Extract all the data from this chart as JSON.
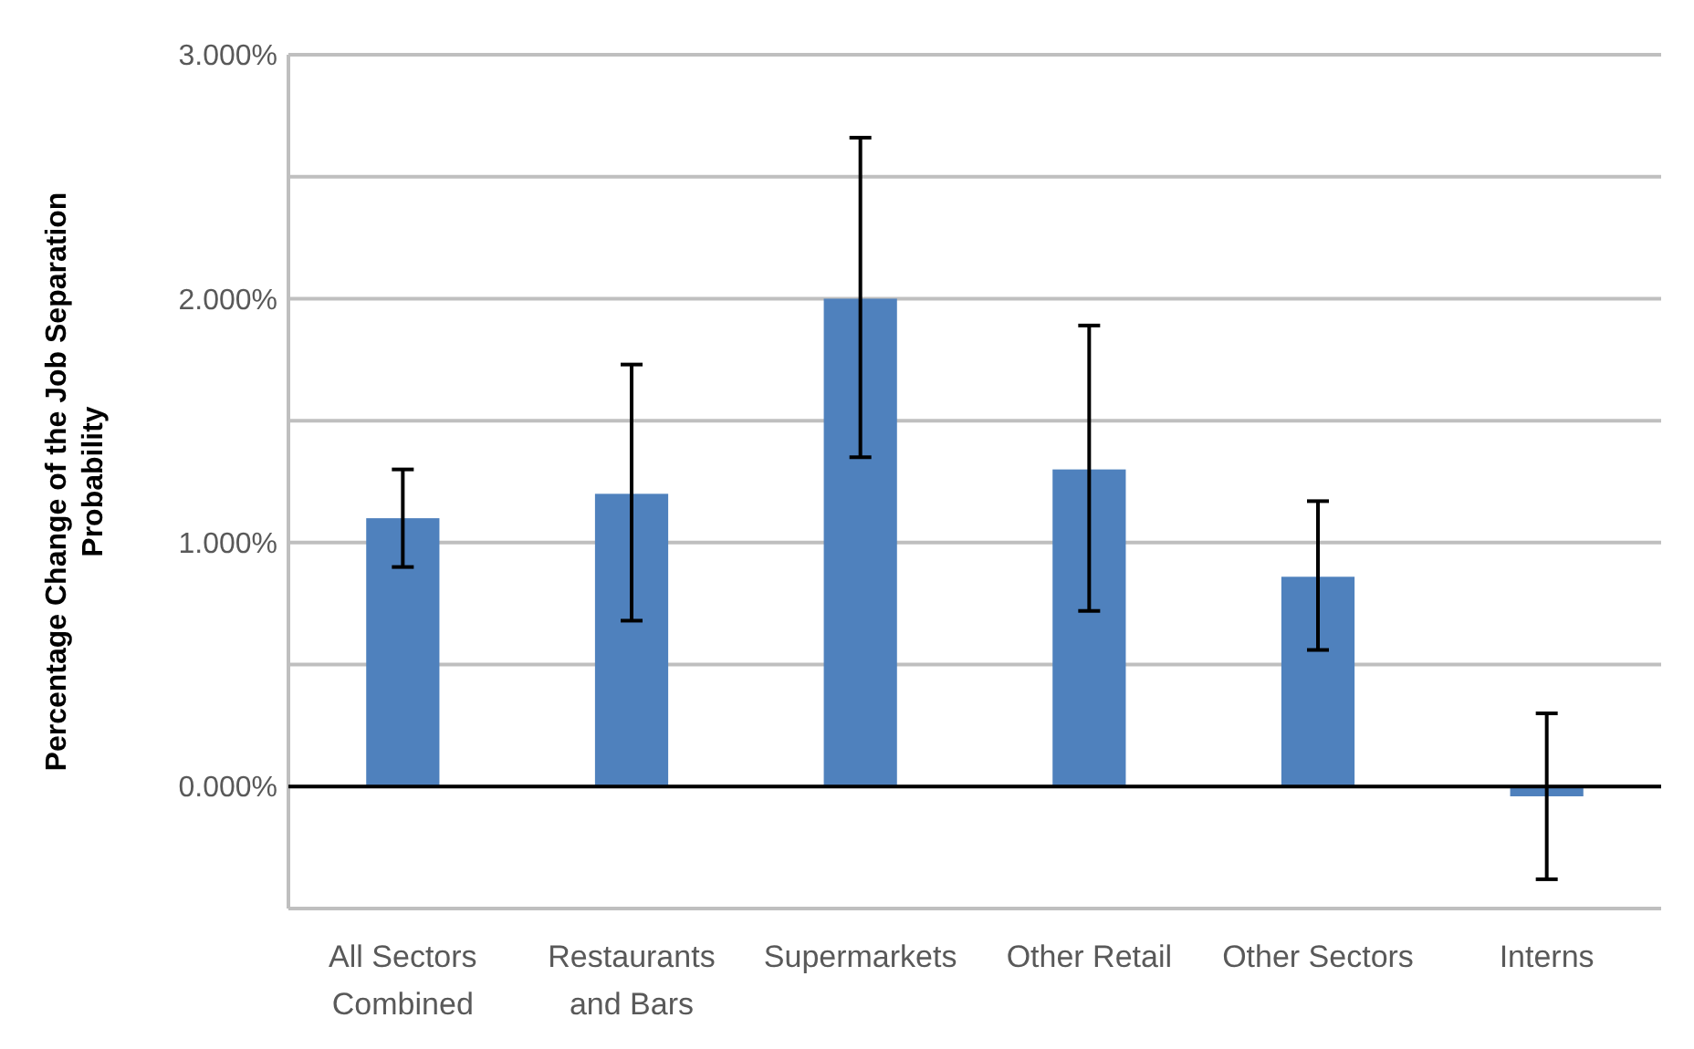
{
  "chart_data": {
    "type": "bar",
    "ylabel": "Percentage Change of the  Job Separation\nProbability",
    "categories": [
      "All Sectors\nCombined",
      "Restaurants\nand Bars",
      "Supermarkets",
      "Other Retail",
      "Other Sectors",
      "Interns"
    ],
    "values": [
      1.1,
      1.2,
      2.0,
      1.3,
      0.86,
      -0.04
    ],
    "errors": [
      [
        0.9,
        1.3
      ],
      [
        0.68,
        1.73
      ],
      [
        1.35,
        2.66
      ],
      [
        0.72,
        1.89
      ],
      [
        0.56,
        1.17
      ],
      [
        -0.38,
        0.3
      ]
    ],
    "colors": [
      "#4f81bd",
      "#4f81bd",
      "#4f81bd",
      "#4f81bd",
      "#4f81bd",
      "#4f81bd"
    ],
    "ylim": [
      -0.5,
      3
    ],
    "yticks": [
      {
        "value": -0.5,
        "label": null
      },
      {
        "value": 0,
        "label": "0.000%"
      },
      {
        "value": 0.5,
        "label": null
      },
      {
        "value": 1,
        "label": "1.000%"
      },
      {
        "value": 1.5,
        "label": null
      },
      {
        "value": 2,
        "label": "2.000%"
      },
      {
        "value": 2.5,
        "label": null
      },
      {
        "value": 3,
        "label": "3.000%"
      }
    ],
    "grid": "y"
  }
}
